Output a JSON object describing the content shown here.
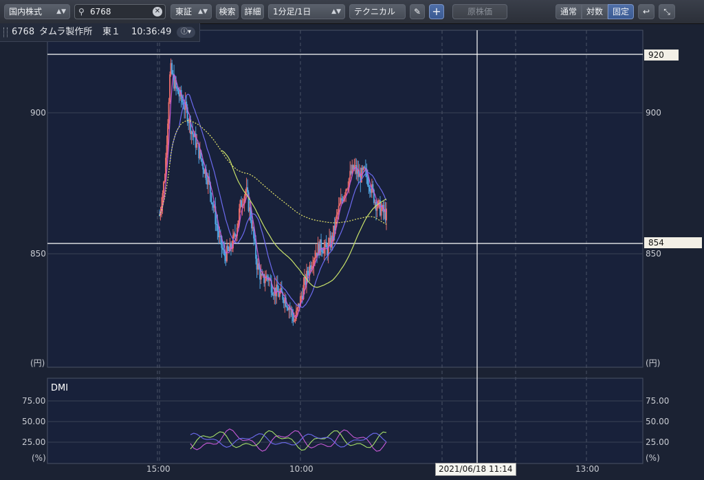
{
  "toolbar": {
    "market_select": "国内株式",
    "search_value": "6768",
    "exchange_select": "東証",
    "search_button": "検索",
    "detail_button": "詳細",
    "interval_select": "1分足/1日",
    "technical_select": "テクニカル",
    "original_price_button": "原株価",
    "scale_normal": "通常",
    "scale_log": "対数",
    "scale_fixed": "固定"
  },
  "info": {
    "code": "6768",
    "name": "タムラ製作所",
    "market": "東１",
    "time": "10:36:49"
  },
  "price_axis": {
    "ticks": [
      "900",
      "850"
    ],
    "unit": "(円)",
    "crosshair_price": "920",
    "last_price": "854"
  },
  "dmi_axis": {
    "title": "DMI",
    "ticks": [
      "75.00",
      "50.00",
      "25.00"
    ],
    "unit": "(%)"
  },
  "time_axis": {
    "ticks": [
      "15:00",
      "10:00",
      "13:00"
    ],
    "crosshair_label": "2021/06/18 11:14"
  },
  "colors": {
    "background": "#1b2233",
    "grid": "#3a4256",
    "candle_up": "#e46a6a",
    "candle_down": "#4fa3e0",
    "ma_short": "#c85ad8",
    "ma_mid": "#6d6bf0",
    "ma_long": "#c9e36a",
    "vwap": "#e8e86a",
    "crosshair": "#ffffff"
  },
  "chart_data": {
    "type": "candlestick",
    "ylim": [
      794,
      927
    ],
    "close_path": [
      854,
      870,
      912,
      904,
      900,
      895,
      887,
      881,
      874,
      868,
      857,
      845,
      838,
      840,
      846,
      858,
      864,
      852,
      835,
      828,
      830,
      825,
      823,
      822,
      818,
      812,
      820,
      828,
      835,
      840,
      842,
      840,
      845,
      855,
      862,
      868,
      873,
      869,
      871,
      866,
      859,
      856,
      854
    ]
  }
}
